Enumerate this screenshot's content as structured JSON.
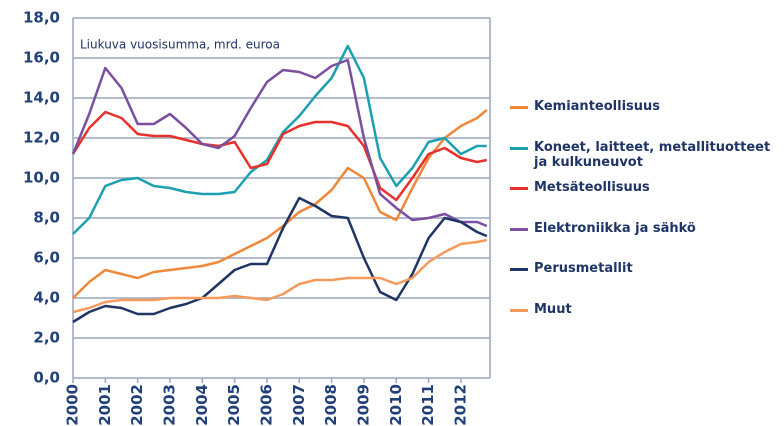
{
  "chart_data": {
    "type": "line",
    "annotation": "Liukuva vuosisumma, mrd. euroa",
    "x": [
      2000,
      2000.5,
      2001,
      2001.5,
      2002,
      2002.5,
      2003,
      2003.5,
      2004,
      2004.5,
      2005,
      2005.5,
      2006,
      2006.5,
      2007,
      2007.5,
      2008,
      2008.5,
      2009,
      2009.5,
      2010,
      2010.5,
      2011,
      2011.5,
      2012,
      2012.5,
      2012.8
    ],
    "series": [
      {
        "name": "Kemianteollisuus",
        "color": "#f0883a",
        "values": [
          4.0,
          4.8,
          5.4,
          5.2,
          5.0,
          5.3,
          5.4,
          5.5,
          5.6,
          5.8,
          6.2,
          6.6,
          7.0,
          7.6,
          8.3,
          8.7,
          9.4,
          10.5,
          10.0,
          8.3,
          7.9,
          9.5,
          11.0,
          12.0,
          12.6,
          13.0,
          13.4
        ]
      },
      {
        "name": "Koneet, laitteet, metallituotteet ja kulkuneuvot",
        "color": "#1aa0b0",
        "values": [
          7.2,
          8.0,
          9.6,
          9.9,
          10.0,
          9.6,
          9.5,
          9.3,
          9.2,
          9.2,
          9.3,
          10.3,
          10.9,
          12.3,
          13.1,
          14.1,
          15.0,
          16.6,
          15.0,
          11.0,
          9.6,
          10.5,
          11.8,
          12.0,
          11.2,
          11.6,
          11.6
        ]
      },
      {
        "name": "Metsäteollisuus",
        "color": "#e8312a",
        "values": [
          11.2,
          12.5,
          13.3,
          13.0,
          12.2,
          12.1,
          12.1,
          11.9,
          11.7,
          11.6,
          11.8,
          10.5,
          10.7,
          12.2,
          12.6,
          12.8,
          12.8,
          12.6,
          11.6,
          9.5,
          8.9,
          10.0,
          11.2,
          11.5,
          11.0,
          10.8,
          10.9
        ]
      },
      {
        "name": "Elektroniikka ja sähkö",
        "color": "#7a4fa0",
        "values": [
          11.2,
          13.2,
          15.5,
          14.5,
          12.7,
          12.7,
          13.2,
          12.5,
          11.7,
          11.5,
          12.1,
          13.5,
          14.8,
          15.4,
          15.3,
          15.0,
          15.6,
          15.9,
          12.0,
          9.2,
          8.5,
          7.9,
          8.0,
          8.2,
          7.8,
          7.8,
          7.6
        ]
      },
      {
        "name": "Perusmetallit",
        "color": "#1f3566",
        "values": [
          2.8,
          3.3,
          3.6,
          3.5,
          3.2,
          3.2,
          3.5,
          3.7,
          4.0,
          4.7,
          5.4,
          5.7,
          5.7,
          7.5,
          9.0,
          8.6,
          8.1,
          8.0,
          6.0,
          4.3,
          3.9,
          5.2,
          7.0,
          8.0,
          7.8,
          7.3,
          7.1
        ]
      },
      {
        "name": "Muut",
        "color": "#f59a5a",
        "values": [
          3.3,
          3.5,
          3.8,
          3.9,
          3.9,
          3.9,
          4.0,
          4.0,
          4.0,
          4.0,
          4.1,
          4.0,
          3.9,
          4.2,
          4.7,
          4.9,
          4.9,
          5.0,
          5.0,
          5.0,
          4.7,
          5.0,
          5.8,
          6.3,
          6.7,
          6.8,
          6.9
        ]
      }
    ],
    "xlim": [
      2000,
      2012.9
    ],
    "xticks": [
      2000,
      2001,
      2002,
      2003,
      2004,
      2005,
      2006,
      2007,
      2008,
      2009,
      2010,
      2011,
      2012
    ],
    "ylim": [
      0,
      18
    ],
    "yticks": [
      {
        "value": 0,
        "label": "0,0"
      },
      {
        "value": 2,
        "label": "2,0"
      },
      {
        "value": 4,
        "label": "4,0"
      },
      {
        "value": 6,
        "label": "6,0"
      },
      {
        "value": 8,
        "label": "8,0"
      },
      {
        "value": 10,
        "label": "10,0"
      },
      {
        "value": 12,
        "label": "12,0"
      },
      {
        "value": 14,
        "label": "14,0"
      },
      {
        "value": 16,
        "label": "16,0"
      },
      {
        "value": 18,
        "label": "18,0"
      }
    ],
    "grid": true,
    "legend": "right"
  }
}
